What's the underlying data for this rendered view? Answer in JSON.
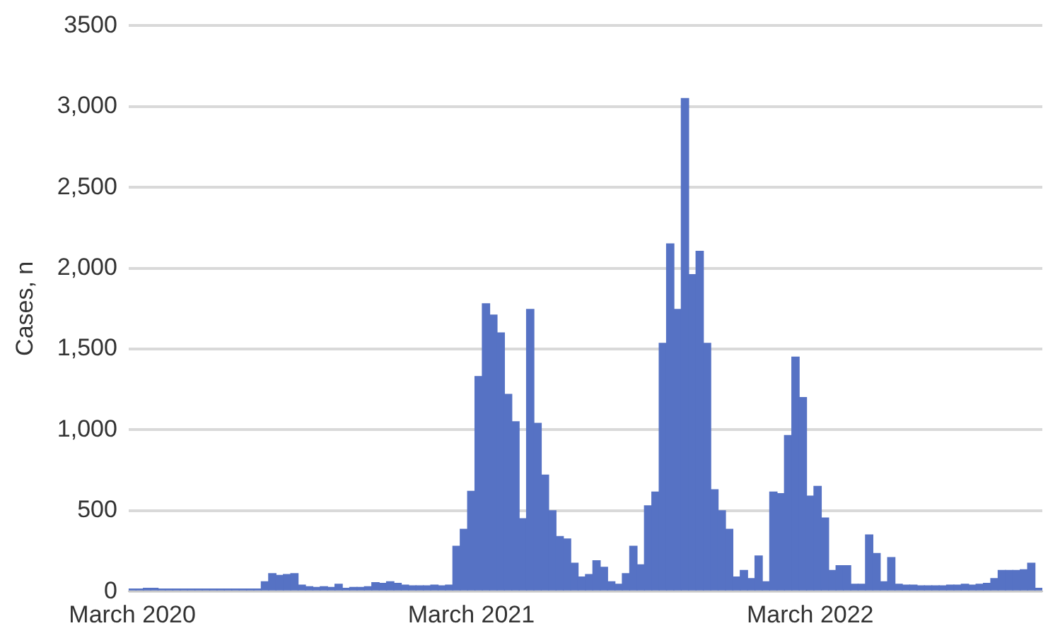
{
  "chart_data": {
    "type": "bar",
    "ylabel": "Cases, n",
    "categories": [
      "March 2020",
      null,
      null,
      null,
      null,
      null,
      null,
      null,
      null,
      null,
      null,
      null,
      null,
      null,
      null,
      null,
      null,
      null,
      null,
      null,
      null,
      null,
      null,
      null,
      null,
      null,
      null,
      null,
      null,
      null,
      null,
      null,
      null,
      null,
      null,
      null,
      null,
      null,
      null,
      null,
      null,
      null,
      null,
      null,
      null,
      null,
      "March 2021",
      null,
      null,
      null,
      null,
      null,
      null,
      null,
      null,
      null,
      null,
      null,
      null,
      null,
      null,
      null,
      null,
      null,
      null,
      null,
      null,
      null,
      null,
      null,
      null,
      null,
      null,
      null,
      null,
      null,
      null,
      null,
      null,
      null,
      null,
      null,
      null,
      null,
      null,
      null,
      null,
      null,
      null,
      null,
      null,
      null,
      "March 2022",
      null,
      null,
      null,
      null,
      null,
      null,
      null,
      null,
      null,
      null,
      null,
      null,
      null,
      null,
      null,
      null,
      null,
      null,
      null,
      null,
      null,
      null,
      null,
      null,
      null,
      null,
      null,
      null,
      null,
      null,
      null
    ],
    "values": [
      15,
      15,
      20,
      20,
      15,
      15,
      15,
      15,
      15,
      15,
      15,
      15,
      15,
      15,
      15,
      15,
      15,
      15,
      60,
      110,
      100,
      105,
      110,
      40,
      30,
      25,
      30,
      25,
      45,
      20,
      25,
      25,
      30,
      55,
      50,
      60,
      50,
      40,
      35,
      35,
      35,
      40,
      35,
      40,
      280,
      385,
      620,
      1330,
      1780,
      1710,
      1600,
      1220,
      1050,
      450,
      1745,
      1040,
      720,
      500,
      340,
      325,
      175,
      90,
      105,
      190,
      150,
      60,
      45,
      110,
      280,
      165,
      530,
      615,
      1535,
      2150,
      1745,
      3050,
      1960,
      2105,
      1535,
      630,
      500,
      385,
      90,
      130,
      80,
      220,
      60,
      615,
      605,
      965,
      1450,
      1200,
      590,
      650,
      455,
      130,
      160,
      160,
      45,
      45,
      350,
      235,
      60,
      210,
      45,
      40,
      40,
      35,
      35,
      35,
      35,
      40,
      40,
      45,
      40,
      45,
      50,
      80,
      130,
      130,
      130,
      135,
      175,
      20
    ],
    "color": "#5672c4",
    "ylim": [
      0,
      3500
    ],
    "yticks": [
      0,
      500,
      {
        "value": 1000,
        "label": "1,000"
      },
      {
        "value": 1500,
        "label": "1,500"
      },
      {
        "value": 2000,
        "label": "2,000"
      },
      {
        "value": 2500,
        "label": "2,500"
      },
      {
        "value": 3000,
        "label": "3,000"
      },
      3500
    ],
    "grid": "y",
    "legend": false
  }
}
